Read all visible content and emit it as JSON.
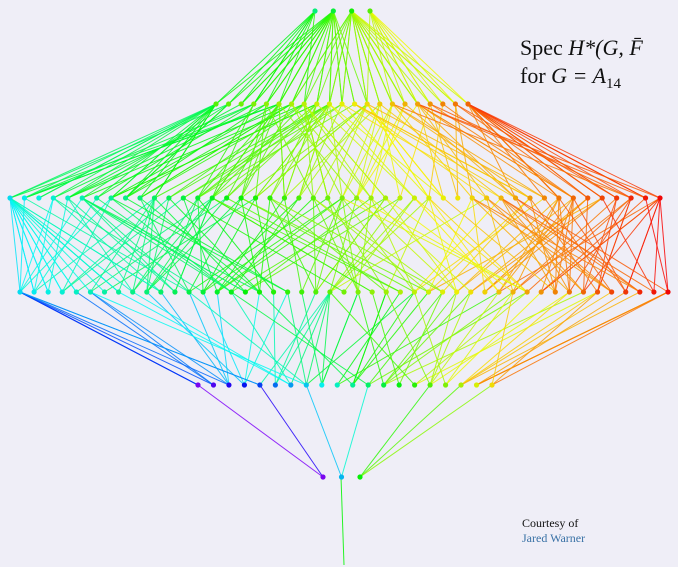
{
  "title": {
    "line1_prefix": "Spec",
    "line1_symbol": "H*(G, F̄",
    "line2_prefix": "for",
    "line2_group": "G = A",
    "line2_subscript": "14"
  },
  "credit": {
    "text": "Courtesy of",
    "author_link": "Jared Warner"
  },
  "diagram": {
    "type": "layered-graph",
    "levels": [
      {
        "name": "top",
        "count": 4,
        "hue_from": 150,
        "hue_to": 100
      },
      {
        "name": "second",
        "count": 21,
        "hue_from": 100,
        "hue_to": 25
      },
      {
        "name": "third",
        "count": 46,
        "hue_from": 185,
        "hue_to": 0
      },
      {
        "name": "fourth",
        "count": 47,
        "hue_from": 185,
        "hue_to": 0
      },
      {
        "name": "fifth",
        "count": 20,
        "hue_from": 270,
        "hue_to": 55
      },
      {
        "name": "bottom",
        "count": 3,
        "hue_from": 270,
        "hue_to": 120
      }
    ]
  }
}
